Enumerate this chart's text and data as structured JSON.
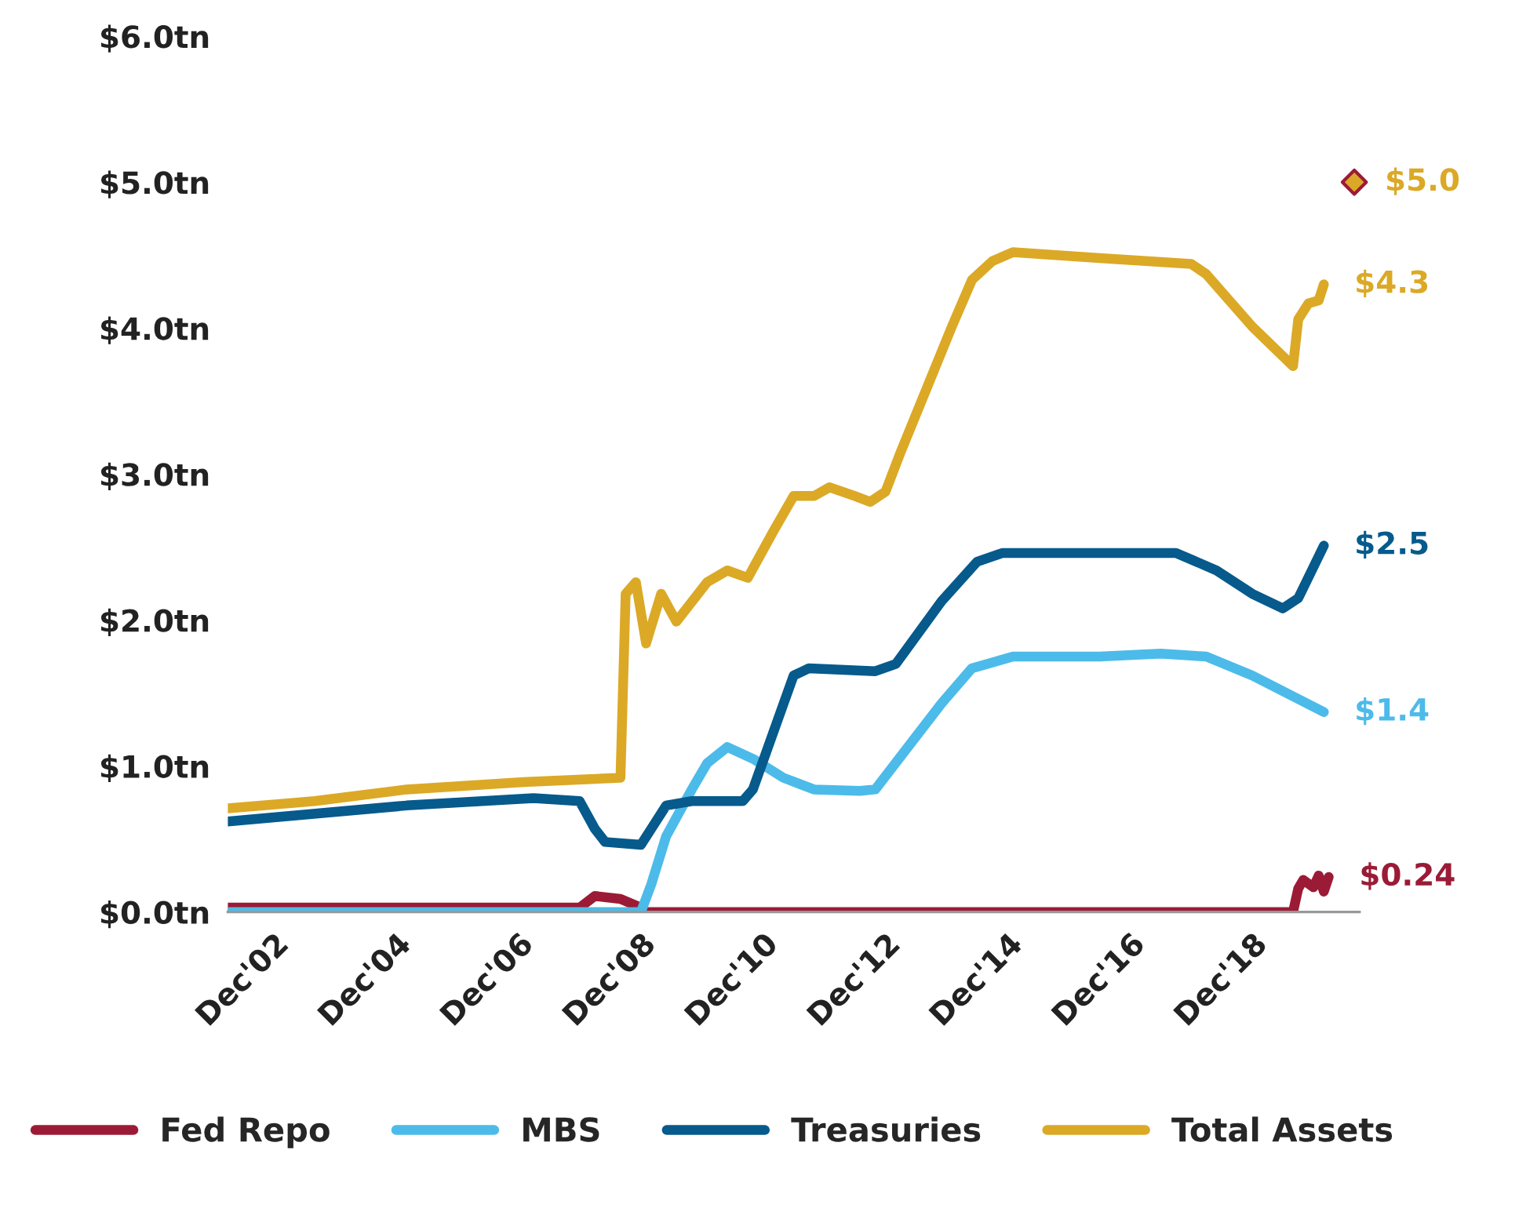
{
  "chart_data": {
    "type": "line",
    "xlim": [
      "2002-03",
      "2020-09"
    ],
    "xticks": [
      {
        "value": "2002-12",
        "label": "Dec'02"
      },
      {
        "value": "2004-12",
        "label": "Dec'04"
      },
      {
        "value": "2006-12",
        "label": "Dec'06"
      },
      {
        "value": "2008-12",
        "label": "Dec'08"
      },
      {
        "value": "2010-12",
        "label": "Dec'10"
      },
      {
        "value": "2012-12",
        "label": "Dec'12"
      },
      {
        "value": "2014-12",
        "label": "Dec'14"
      },
      {
        "value": "2016-12",
        "label": "Dec'16"
      },
      {
        "value": "2018-12",
        "label": "Dec'18"
      }
    ],
    "ylim": [
      0,
      6
    ],
    "yticks": [
      {
        "value": 0,
        "label": "$0.0tn"
      },
      {
        "value": 1,
        "label": "$1.0tn"
      },
      {
        "value": 2,
        "label": "$2.0tn"
      },
      {
        "value": 3,
        "label": "$3.0tn"
      },
      {
        "value": 4,
        "label": "$4.0tn"
      },
      {
        "value": 5,
        "label": "$5.0tn"
      },
      {
        "value": 6,
        "label": "$6.0tn"
      }
    ],
    "grid": false,
    "legend": "bottom",
    "marker": "none",
    "line_style": "solid",
    "series": [
      {
        "name": "Fed Repo",
        "color": "#9b1b36",
        "x": [
          "2002-03",
          "2007-12",
          "2008-03",
          "2008-08",
          "2008-12",
          "2009-01",
          "2019-08",
          "2019-09",
          "2019-10",
          "2019-12",
          "2020-01",
          "2020-02",
          "2020-03"
        ],
        "values": [
          0.03,
          0.03,
          0.11,
          0.09,
          0.03,
          0,
          0,
          0.16,
          0.22,
          0.17,
          0.25,
          0.14,
          0.24
        ],
        "value_labels": [
          null,
          null,
          null,
          null,
          null,
          null,
          null,
          null,
          null,
          null,
          null,
          null,
          "$0.24"
        ]
      },
      {
        "name": "MBS",
        "color": "#4cbbe9",
        "x": [
          "2002-03",
          "2008-12",
          "2009-02",
          "2009-05",
          "2009-10",
          "2010-01",
          "2010-05",
          "2010-10",
          "2011-04",
          "2011-10",
          "2012-07",
          "2012-10",
          "2013-11",
          "2014-05",
          "2015-01",
          "2016-06",
          "2017-06",
          "2018-03",
          "2018-12",
          "2020-02"
        ],
        "values": [
          0,
          0,
          0.19,
          0.52,
          0.84,
          1.02,
          1.13,
          1.05,
          0.92,
          0.84,
          0.83,
          0.84,
          1.43,
          1.67,
          1.75,
          1.75,
          1.77,
          1.75,
          1.62,
          1.37
        ],
        "value_labels": [
          null,
          null,
          null,
          null,
          null,
          null,
          null,
          null,
          null,
          null,
          null,
          null,
          null,
          null,
          null,
          null,
          null,
          null,
          null,
          "$1.4"
        ]
      },
      {
        "name": "Treasuries",
        "color": "#065a8c",
        "x": [
          "2002-03",
          "2005-02",
          "2007-03",
          "2007-12",
          "2008-03",
          "2008-05",
          "2008-12",
          "2009-05",
          "2009-10",
          "2010-08",
          "2010-10",
          "2011-06",
          "2011-09",
          "2012-10",
          "2013-02",
          "2013-11",
          "2014-06",
          "2014-11",
          "2017-09",
          "2018-05",
          "2018-12",
          "2019-06",
          "2019-09",
          "2020-02"
        ],
        "values": [
          0.62,
          0.73,
          0.78,
          0.76,
          0.57,
          0.48,
          0.46,
          0.73,
          0.76,
          0.76,
          0.84,
          1.62,
          1.67,
          1.65,
          1.7,
          2.13,
          2.4,
          2.46,
          2.46,
          2.34,
          2.18,
          2.08,
          2.15,
          2.51
        ],
        "value_labels": [
          null,
          null,
          null,
          null,
          null,
          null,
          null,
          null,
          null,
          null,
          null,
          null,
          null,
          null,
          null,
          null,
          null,
          null,
          null,
          null,
          null,
          null,
          null,
          "$2.5"
        ]
      },
      {
        "name": "Total Assets",
        "color": "#dba926",
        "x": [
          "2002-03",
          "2003-08",
          "2005-02",
          "2007-01",
          "2008-08",
          "2008-09",
          "2008-11",
          "2009-01",
          "2009-04",
          "2009-07",
          "2010-01",
          "2010-05",
          "2010-09",
          "2011-02",
          "2011-06",
          "2011-10",
          "2012-01",
          "2012-06",
          "2012-09",
          "2012-12",
          "2013-03",
          "2013-08",
          "2014-01",
          "2014-05",
          "2014-09",
          "2015-01",
          "2016-06",
          "2017-12",
          "2018-03",
          "2018-12",
          "2019-08",
          "2019-09",
          "2019-11",
          "2020-01",
          "2020-02"
        ],
        "values": [
          0.71,
          0.76,
          0.84,
          0.89,
          0.92,
          2.18,
          2.26,
          1.84,
          2.18,
          1.99,
          2.26,
          2.34,
          2.29,
          2.61,
          2.85,
          2.85,
          2.91,
          2.85,
          2.81,
          2.88,
          3.15,
          3.58,
          4.01,
          4.33,
          4.46,
          4.52,
          4.48,
          4.44,
          4.37,
          4.01,
          3.74,
          4.06,
          4.17,
          4.19,
          4.3
        ],
        "value_labels": [
          null,
          null,
          null,
          null,
          null,
          null,
          null,
          null,
          null,
          null,
          null,
          null,
          null,
          null,
          null,
          null,
          null,
          null,
          null,
          null,
          null,
          null,
          null,
          null,
          null,
          null,
          null,
          null,
          null,
          null,
          null,
          null,
          null,
          null,
          "$4.3"
        ]
      },
      {
        "type": "scatter",
        "marker": "diamond",
        "color": "#dba926",
        "x": [
          "2020-08"
        ],
        "values": [
          5.0
        ],
        "value_labels": [
          "$5.0"
        ]
      }
    ]
  }
}
